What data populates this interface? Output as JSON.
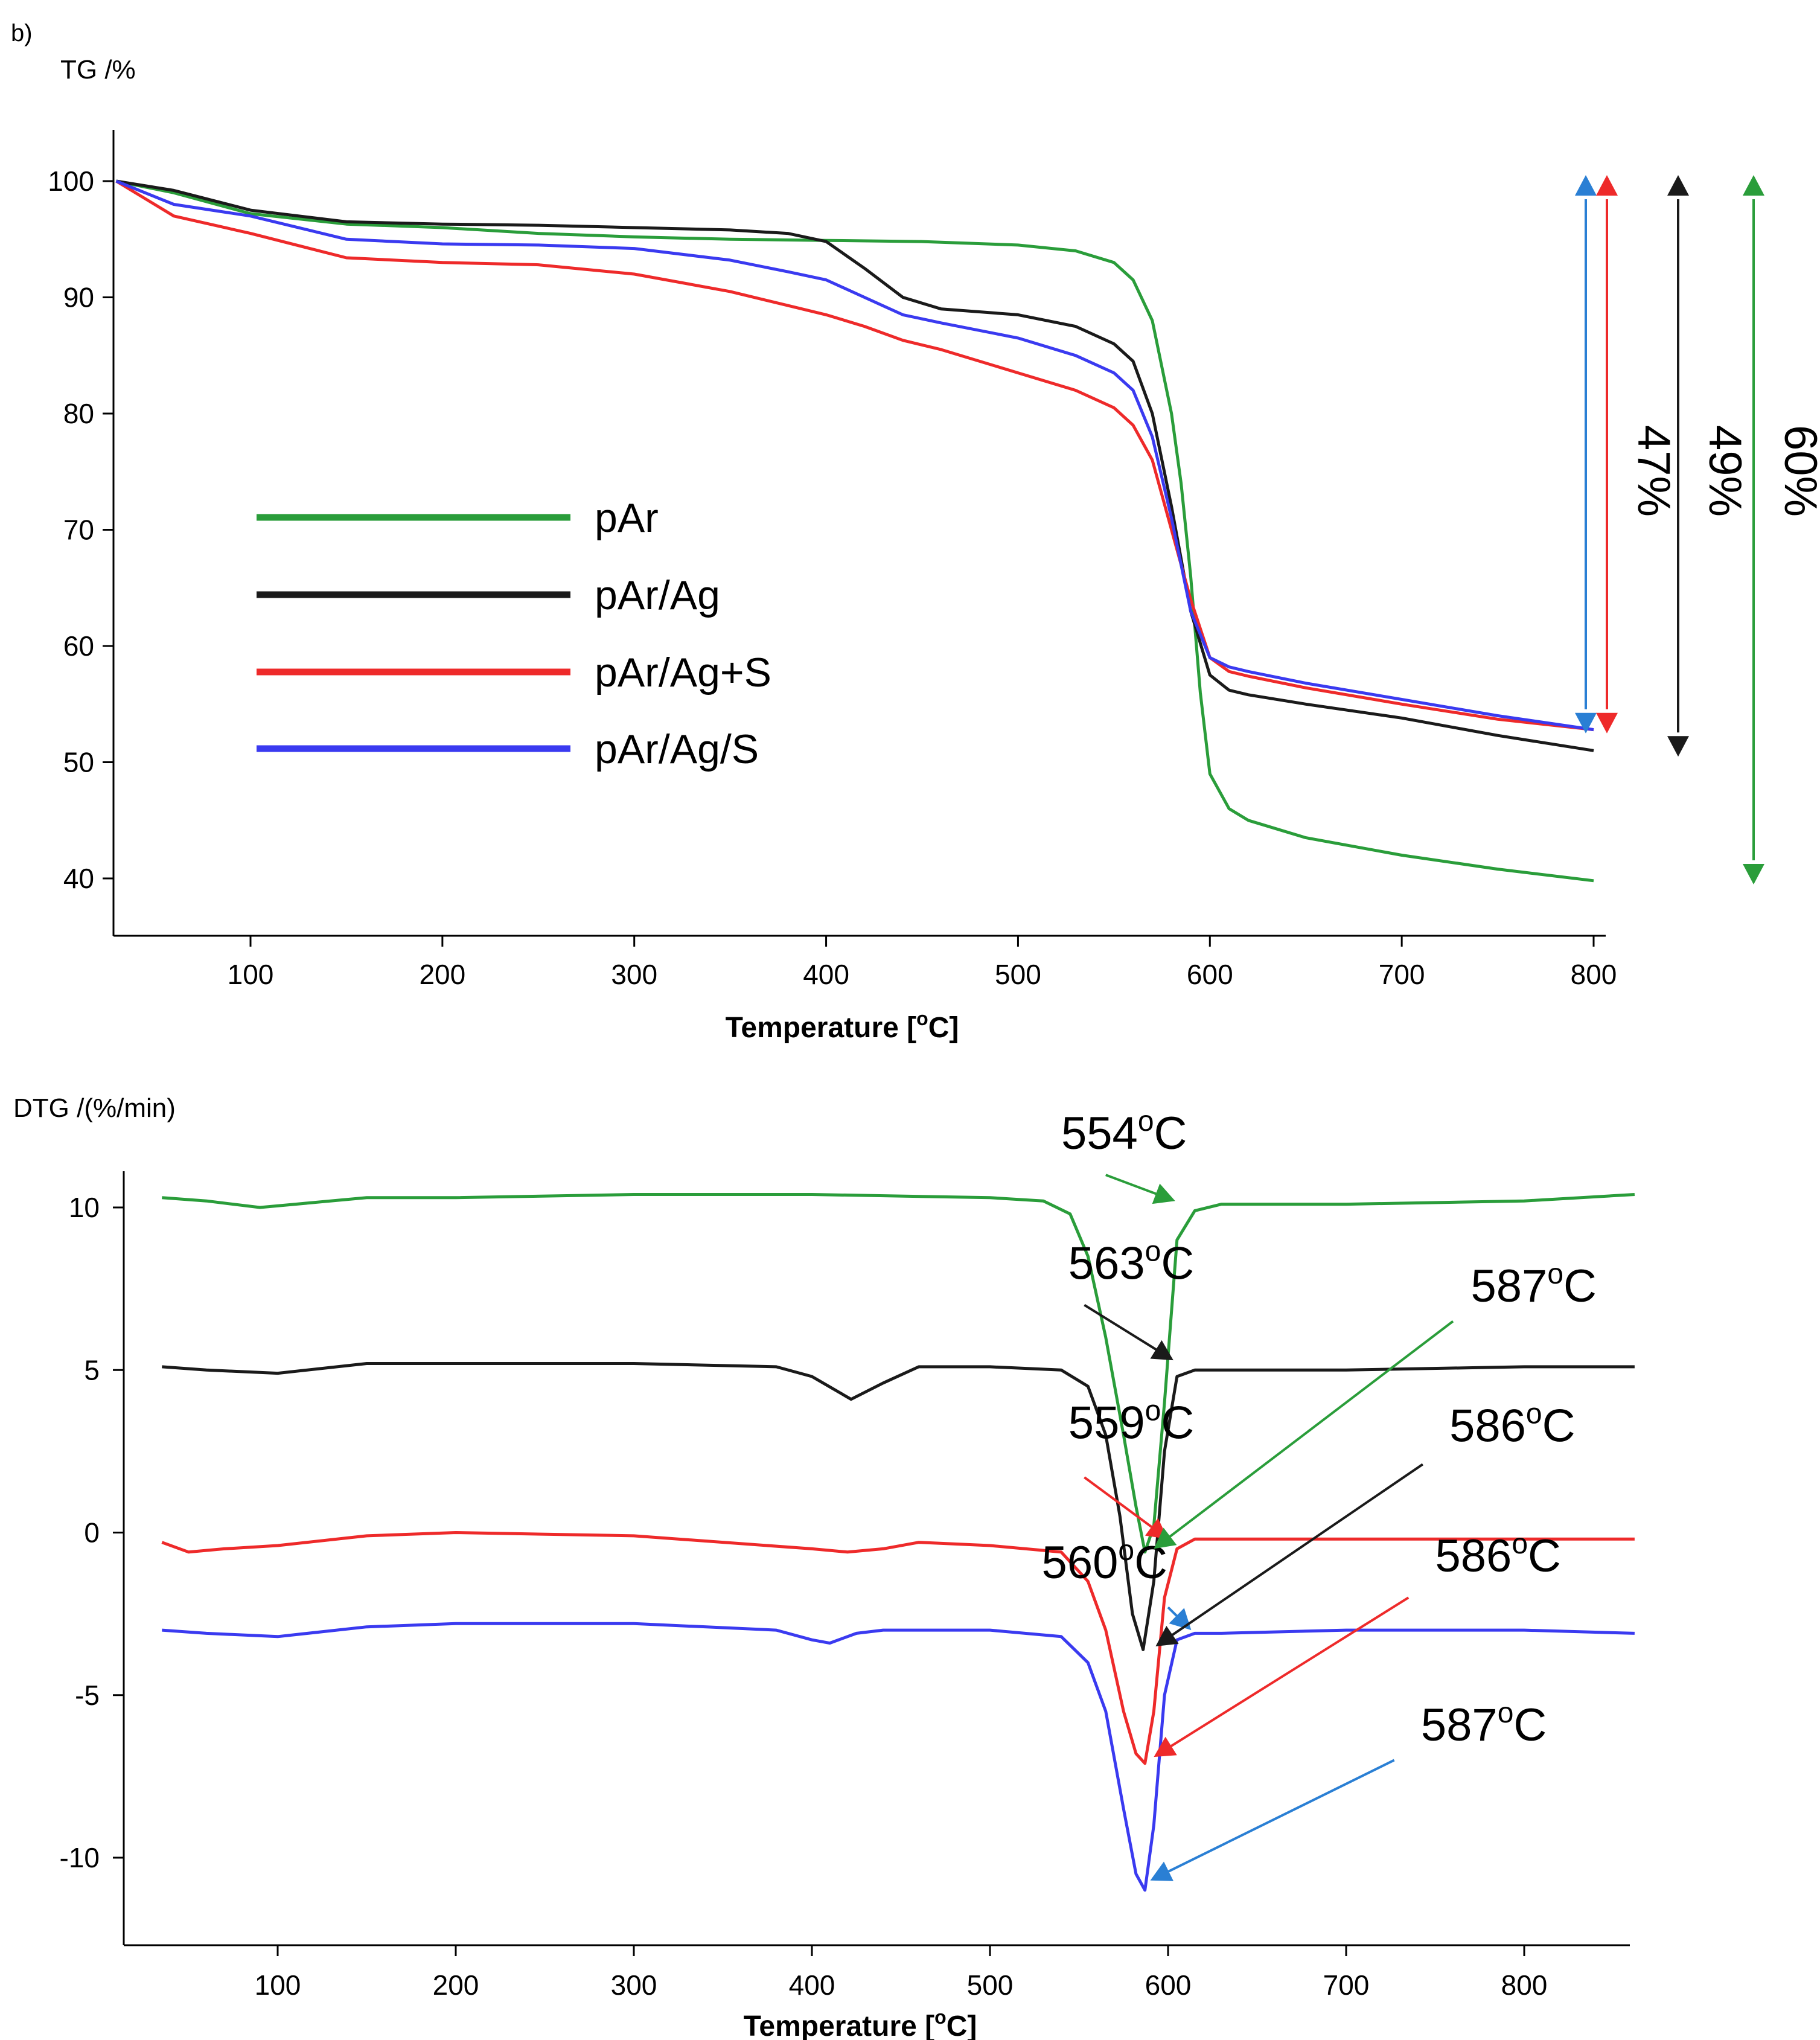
{
  "panel_label": "b)",
  "chart_data": [
    {
      "id": "tg",
      "type": "line",
      "ylabel": "TG /%",
      "xlabel": "Temperature [",
      "xlabel_sup": "o",
      "xlabel_suffix": "C]",
      "xlim": [
        27,
        808
      ],
      "ylim": [
        36,
        105
      ],
      "xticks": [
        100,
        200,
        300,
        400,
        500,
        600,
        700,
        800
      ],
      "yticks": [
        40,
        50,
        60,
        70,
        80,
        90,
        100
      ],
      "series": [
        {
          "name": "pAr",
          "color": "#2a9d3a",
          "x": [
            30,
            60,
            100,
            150,
            200,
            250,
            300,
            350,
            400,
            450,
            500,
            530,
            550,
            560,
            570,
            580,
            585,
            590,
            595,
            600,
            610,
            620,
            650,
            700,
            750,
            800
          ],
          "y": [
            100,
            99,
            97.2,
            96.3,
            96,
            95.5,
            95.2,
            95,
            94.9,
            94.8,
            94.5,
            94,
            93,
            91.5,
            88,
            80,
            74,
            66,
            56,
            49,
            46,
            45,
            43.5,
            42,
            40.8,
            39.8
          ]
        },
        {
          "name": "pAr/Ag",
          "color": "#1a1a1a",
          "x": [
            30,
            60,
            100,
            150,
            200,
            250,
            300,
            350,
            380,
            400,
            420,
            440,
            460,
            500,
            530,
            550,
            560,
            570,
            580,
            590,
            600,
            610,
            620,
            650,
            700,
            750,
            800
          ],
          "y": [
            100,
            99.2,
            97.5,
            96.5,
            96.3,
            96.2,
            96,
            95.8,
            95.5,
            94.8,
            92.5,
            90,
            89,
            88.5,
            87.5,
            86,
            84.5,
            80,
            72,
            63,
            57.5,
            56.2,
            55.8,
            55,
            53.8,
            52.3,
            51
          ]
        },
        {
          "name": "pAr/Ag+S",
          "color": "#ee2a2a",
          "x": [
            30,
            60,
            100,
            150,
            200,
            250,
            300,
            350,
            400,
            420,
            440,
            460,
            500,
            530,
            550,
            560,
            570,
            580,
            590,
            600,
            610,
            620,
            650,
            700,
            750,
            800
          ],
          "y": [
            100,
            97,
            95.5,
            93.4,
            93,
            92.8,
            92,
            90.5,
            88.5,
            87.5,
            86.3,
            85.5,
            83.5,
            82,
            80.5,
            79,
            76,
            70,
            64,
            59,
            57.8,
            57.4,
            56.4,
            55,
            53.7,
            52.8
          ]
        },
        {
          "name": "pAr/Ag/S",
          "color": "#3a3af0",
          "x": [
            30,
            60,
            100,
            150,
            200,
            250,
            300,
            350,
            380,
            400,
            420,
            440,
            460,
            500,
            530,
            550,
            560,
            570,
            580,
            590,
            600,
            610,
            620,
            650,
            700,
            750,
            800
          ],
          "y": [
            100,
            98,
            97,
            95,
            94.6,
            94.5,
            94.2,
            93.2,
            92.2,
            91.5,
            90,
            88.5,
            87.8,
            86.5,
            85,
            83.5,
            82,
            78,
            71,
            63,
            59,
            58.2,
            57.8,
            56.8,
            55.4,
            54,
            52.8
          ]
        }
      ],
      "legend": [
        "pAr",
        "pAr/Ag",
        "pAr/Ag+S",
        "pAr/Ag/S"
      ],
      "mass_loss_arrows": [
        {
          "color": "#2a7fd4",
          "x": 803,
          "y_top": 100,
          "y_bottom": 53,
          "label": ""
        },
        {
          "color": "#ee2a2a",
          "x": 808,
          "y_top": 100,
          "y_bottom": 53,
          "label": "47%"
        },
        {
          "color": "#1a1a1a",
          "x": 850,
          "y_top": 100,
          "y_bottom": 51,
          "label": "49%"
        },
        {
          "color": "#2a9d3a",
          "x": 890,
          "y_top": 100,
          "y_bottom": 40,
          "label": "60%"
        }
      ]
    },
    {
      "id": "dtg",
      "type": "line",
      "ylabel": "DTG /(%/min)",
      "xlabel": "Temperature [",
      "xlabel_sup": "o",
      "xlabel_suffix": "C]",
      "xlim": [
        27,
        862
      ],
      "ylim": [
        -12.5,
        12
      ],
      "xticks": [
        100,
        200,
        300,
        400,
        500,
        600,
        700,
        800
      ],
      "yticks": [
        10,
        5,
        0,
        -5,
        -10
      ],
      "ytick_labels": [
        "10",
        "5",
        "0",
        "-5",
        "-10"
      ],
      "series": [
        {
          "name": "pAr",
          "color": "#2a9d3a",
          "x": [
            35,
            60,
            90,
            110,
            150,
            200,
            300,
            400,
            500,
            530,
            545,
            555,
            565,
            575,
            582,
            587,
            592,
            598,
            605,
            615,
            630,
            700,
            800,
            862
          ],
          "y": [
            10.3,
            10.2,
            10,
            10.1,
            10.3,
            10.3,
            10.4,
            10.4,
            10.3,
            10.2,
            9.8,
            8.5,
            6,
            3,
            0.8,
            -0.6,
            0.2,
            4,
            9,
            9.9,
            10.1,
            10.1,
            10.2,
            10.4
          ]
        },
        {
          "name": "pAr/Ag",
          "color": "#1a1a1a",
          "x": [
            35,
            60,
            100,
            150,
            200,
            300,
            380,
            400,
            422,
            440,
            460,
            500,
            540,
            555,
            565,
            573,
            580,
            586,
            592,
            598,
            605,
            615,
            630,
            700,
            800,
            862
          ],
          "y": [
            5.1,
            5,
            4.9,
            5.2,
            5.2,
            5.2,
            5.1,
            4.8,
            4.1,
            4.6,
            5.1,
            5.1,
            5,
            4.5,
            3,
            0.5,
            -2.5,
            -3.6,
            -1.5,
            2.5,
            4.8,
            5,
            5,
            5,
            5.1,
            5.1
          ]
        },
        {
          "name": "pAr/Ag+S",
          "color": "#ee2a2a",
          "x": [
            35,
            50,
            70,
            100,
            150,
            200,
            300,
            400,
            420,
            440,
            460,
            500,
            540,
            555,
            565,
            575,
            582,
            587,
            592,
            598,
            605,
            615,
            630,
            700,
            800,
            862
          ],
          "y": [
            -0.3,
            -0.6,
            -0.5,
            -0.4,
            -0.1,
            0,
            -0.1,
            -0.5,
            -0.6,
            -0.5,
            -0.3,
            -0.4,
            -0.6,
            -1.5,
            -3,
            -5.5,
            -6.8,
            -7.1,
            -5.5,
            -2,
            -0.5,
            -0.2,
            -0.2,
            -0.2,
            -0.2,
            -0.2
          ]
        },
        {
          "name": "pAr/Ag/S",
          "color": "#3a3af0",
          "x": [
            35,
            60,
            100,
            150,
            200,
            300,
            380,
            400,
            410,
            425,
            440,
            460,
            500,
            540,
            555,
            565,
            575,
            582,
            587,
            592,
            598,
            605,
            615,
            630,
            700,
            800,
            862
          ],
          "y": [
            -3,
            -3.1,
            -3.2,
            -2.9,
            -2.8,
            -2.8,
            -3,
            -3.3,
            -3.4,
            -3.1,
            -3,
            -3,
            -3,
            -3.2,
            -4,
            -5.5,
            -8.5,
            -10.5,
            -11,
            -9,
            -5,
            -3.3,
            -3.1,
            -3.1,
            -3,
            -3,
            -3.1
          ]
        }
      ],
      "annotations": [
        {
          "text": "554",
          "sup": "o",
          "suffix": "C",
          "color": "#2a9d3a",
          "tx": 540,
          "ty": 11.8,
          "ax1": 565,
          "ay1": 11,
          "ax2": 604,
          "ay2": 10.2
        },
        {
          "text": "563",
          "sup": "o",
          "suffix": "C",
          "color": "#1a1a1a",
          "tx": 544,
          "ty": 7.8,
          "ax1": 553,
          "ay1": 7.0,
          "ax2": 603,
          "ay2": 5.3
        },
        {
          "text": "559",
          "sup": "o",
          "suffix": "C",
          "color": "#ee2a2a",
          "tx": 544,
          "ty": 2.9,
          "ax1": 553,
          "ay1": 1.7,
          "ax2": 600,
          "ay2": -0.2
        },
        {
          "text": "560",
          "sup": "o",
          "suffix": "C",
          "color": "#2a7fd4",
          "tx": 529,
          "ty": -1.4,
          "ax1": 600,
          "ay1": -2.3,
          "ax2": 613,
          "ay2": -3.0
        },
        {
          "text": "587",
          "sup": "o",
          "suffix": "C",
          "color": "#2a9d3a",
          "tx": 770,
          "ty": 7.1,
          "ax1": 760,
          "ay1": 6.5,
          "ax2": 592,
          "ay2": -0.5
        },
        {
          "text": "586",
          "sup": "o",
          "suffix": "C",
          "color": "#1a1a1a",
          "tx": 758,
          "ty": 2.8,
          "ax1": 743,
          "ay1": 2.1,
          "ax2": 593,
          "ay2": -3.5
        },
        {
          "text": "586",
          "sup": "o",
          "suffix": "C",
          "color": "#ee2a2a",
          "tx": 750,
          "ty": -1.2,
          "ax1": 735,
          "ay1": -2.0,
          "ax2": 592,
          "ay2": -6.9
        },
        {
          "text": "587",
          "sup": "o",
          "suffix": "C",
          "color": "#2a7fd4",
          "tx": 742,
          "ty": -6.4,
          "ax1": 727,
          "ay1": -7.0,
          "ax2": 590,
          "ay2": -10.7
        }
      ]
    }
  ]
}
